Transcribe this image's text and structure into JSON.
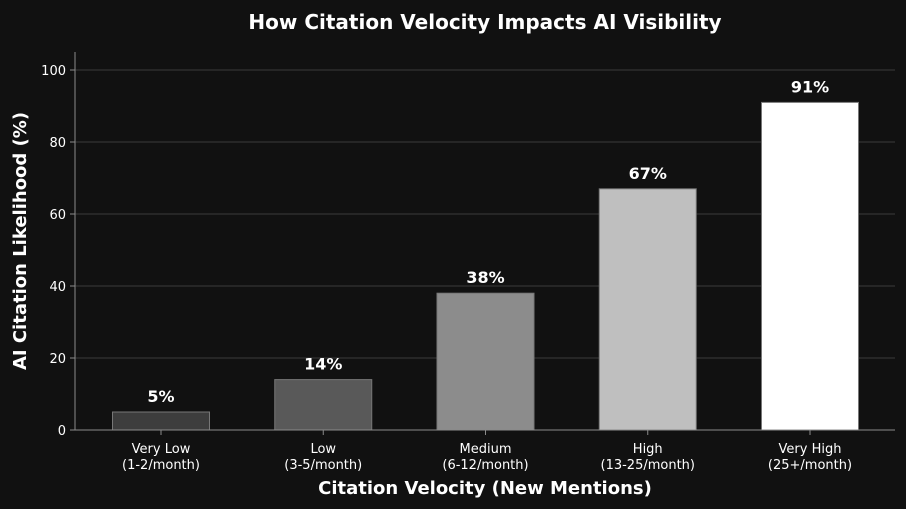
{
  "chart_data": {
    "type": "bar",
    "title": "How Citation Velocity Impacts AI Visibility",
    "xlabel": "Citation Velocity (New Mentions)",
    "ylabel": "AI Citation Likelihood (%)",
    "categories": [
      [
        "Very Low",
        "(1-2/month)"
      ],
      [
        "Low",
        "(3-5/month)"
      ],
      [
        "Medium",
        "(6-12/month)"
      ],
      [
        "High",
        "(13-25/month)"
      ],
      [
        "Very High",
        "(25+/month)"
      ]
    ],
    "values": [
      5,
      14,
      38,
      67,
      91
    ],
    "value_labels": [
      "5%",
      "14%",
      "38%",
      "67%",
      "91%"
    ],
    "bar_colors": [
      "#3d3d3d",
      "#595959",
      "#8c8c8c",
      "#bfbfbf",
      "#ffffff"
    ],
    "ylim": [
      0,
      105
    ],
    "yticks": [
      0,
      20,
      40,
      60,
      80,
      100
    ],
    "grid": true,
    "background": "#111111"
  }
}
